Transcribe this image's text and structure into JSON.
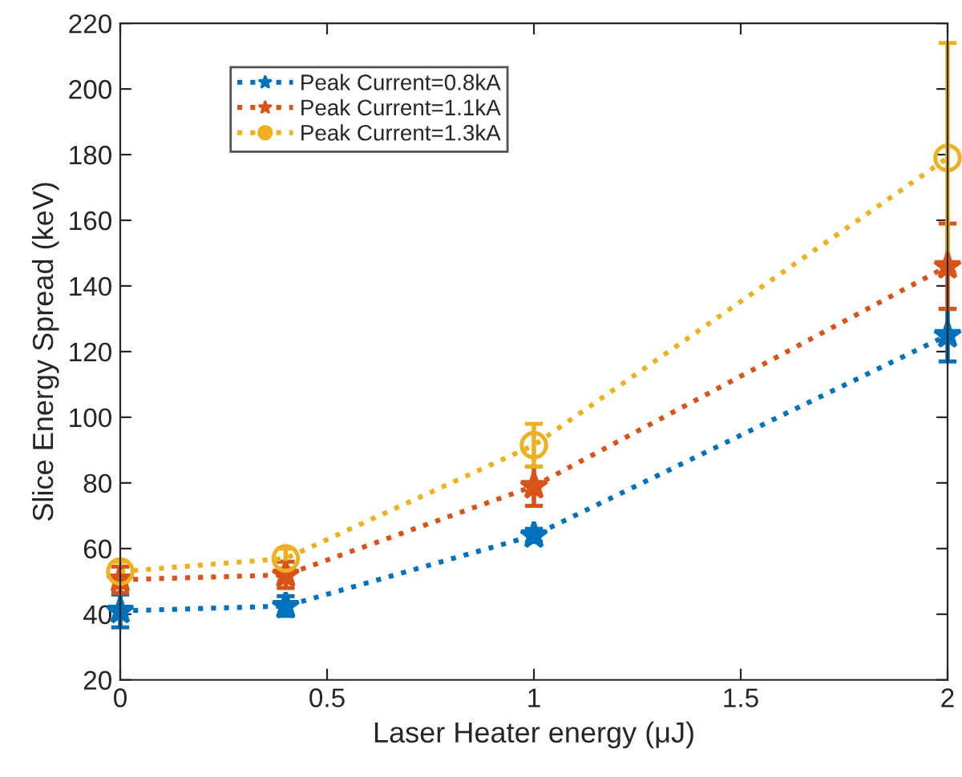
{
  "chart_data": {
    "type": "line",
    "xlabel": "Laser Heater energy (μJ)",
    "ylabel": "Slice Energy Spread (keV)",
    "x": [
      0,
      0.4,
      1,
      2
    ],
    "series": [
      {
        "name": "Peak Current=0.8kA",
        "color": "#0072bd",
        "marker": "star",
        "values": [
          41,
          42.5,
          64,
          125
        ],
        "errors": [
          5,
          3,
          2,
          8
        ]
      },
      {
        "name": "Peak Current=1.1kA",
        "color": "#d95319",
        "marker": "star",
        "values": [
          50.5,
          52,
          79,
          146
        ],
        "errors": [
          4,
          4,
          6,
          13
        ]
      },
      {
        "name": "Peak Current=1.3kA",
        "color": "#edb120",
        "marker": "circle",
        "values": [
          53,
          57,
          91.5,
          179
        ],
        "errors": [
          3,
          3,
          6.5,
          35
        ]
      }
    ],
    "xlim": [
      0,
      2
    ],
    "xticks": [
      0,
      0.5,
      1,
      1.5,
      2
    ],
    "ylim": [
      20,
      220
    ],
    "yticks": [
      20,
      40,
      60,
      80,
      100,
      120,
      140,
      160,
      180,
      200,
      220
    ],
    "line_style": "dotted",
    "legend": "top left",
    "grid": false
  }
}
